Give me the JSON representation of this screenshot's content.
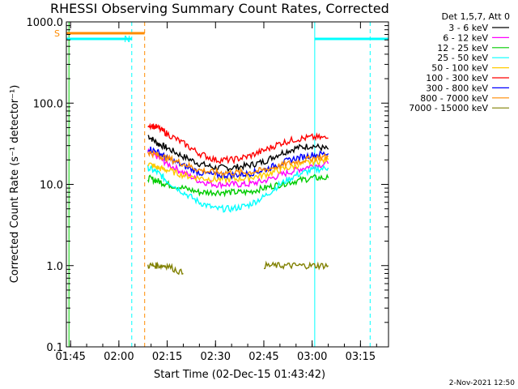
{
  "chart_data": {
    "type": "line",
    "title": "RHESSI Observing Summary Count Rates, Corrected",
    "xlabel": "Start Time (02-Dec-15 01:43:42)",
    "ylabel": "Corrected Count Rate (s⁻¹ detector⁻¹)",
    "yscale": "log",
    "ylim": [
      0.1,
      1000.0
    ],
    "xlim": [
      "01:43:42",
      "03:23:42"
    ],
    "x_ticks": [
      "01:45",
      "02:00",
      "02:15",
      "02:30",
      "02:45",
      "03:00",
      "03:15"
    ],
    "y_ticks": [
      "0.1",
      "1.0",
      "10.0",
      "100.0",
      "1000.0"
    ],
    "legend_title": "Det 1,5,7, Att 0",
    "legend_position": "right-outside",
    "series": [
      {
        "name": "3 - 6 keV",
        "color": "#000000",
        "x": [
          "02:09",
          "02:12",
          "02:15",
          "02:20",
          "02:25",
          "02:30",
          "02:35",
          "02:40",
          "02:45",
          "02:50",
          "02:55",
          "03:00",
          "03:05"
        ],
        "y": [
          40,
          32,
          28,
          22,
          18,
          16,
          16,
          17,
          19,
          24,
          28,
          30,
          27
        ]
      },
      {
        "name": "6 - 12 keV",
        "color": "#ff00ff",
        "x": [
          "02:09",
          "02:12",
          "02:15",
          "02:20",
          "02:25",
          "02:30",
          "02:35",
          "02:40",
          "02:45",
          "02:50",
          "02:55",
          "03:00",
          "03:05"
        ],
        "y": [
          25,
          22,
          18,
          14,
          11,
          10,
          10,
          10,
          11,
          13,
          15,
          17,
          18
        ]
      },
      {
        "name": "12 - 25 keV",
        "color": "#00cc00",
        "x": [
          "02:09",
          "02:12",
          "02:15",
          "02:20",
          "02:25",
          "02:30",
          "02:35",
          "02:40",
          "02:45",
          "02:50",
          "02:55",
          "03:00",
          "03:05"
        ],
        "y": [
          12,
          11,
          10,
          9,
          8,
          8,
          8,
          8,
          9,
          10,
          11,
          12,
          12
        ]
      },
      {
        "name": "25 - 50 keV",
        "color": "#00ffff",
        "x": [
          "02:09",
          "02:12",
          "02:15",
          "02:20",
          "02:25",
          "02:30",
          "02:35",
          "02:40",
          "02:45",
          "02:50",
          "02:55",
          "03:00",
          "03:05"
        ],
        "y": [
          16,
          14,
          11,
          8,
          6,
          5,
          5,
          5.5,
          7,
          10,
          13,
          15,
          16
        ]
      },
      {
        "name": "50 - 100 keV",
        "color": "#ffcc00",
        "x": [
          "02:09",
          "02:12",
          "02:15",
          "02:20",
          "02:25",
          "02:30",
          "02:35",
          "02:40",
          "02:45",
          "02:50",
          "02:55",
          "03:00",
          "03:05"
        ],
        "y": [
          18,
          16,
          15,
          13,
          12,
          11.5,
          11.5,
          12,
          13,
          15,
          17,
          19,
          20
        ]
      },
      {
        "name": "100 - 300 keV",
        "color": "#ff0000",
        "x": [
          "02:09",
          "02:12",
          "02:15",
          "02:20",
          "02:25",
          "02:30",
          "02:35",
          "02:40",
          "02:45",
          "02:50",
          "02:55",
          "03:00",
          "03:05"
        ],
        "y": [
          55,
          50,
          42,
          32,
          24,
          20,
          20,
          22,
          26,
          32,
          36,
          38,
          37
        ]
      },
      {
        "name": "300 - 800 keV",
        "color": "#0000ff",
        "x": [
          "02:09",
          "02:12",
          "02:15",
          "02:20",
          "02:25",
          "02:30",
          "02:35",
          "02:40",
          "02:45",
          "02:50",
          "02:55",
          "03:00",
          "03:05"
        ],
        "y": [
          28,
          25,
          21,
          17,
          14,
          13,
          13,
          13.5,
          15,
          18,
          21,
          23,
          24
        ]
      },
      {
        "name": "800 - 7000 keV",
        "color": "#ff8c00",
        "x": [
          "02:09",
          "02:12",
          "02:15",
          "02:20",
          "02:25",
          "02:30",
          "02:35",
          "02:40",
          "02:45",
          "02:50",
          "02:55",
          "03:00",
          "03:05"
        ],
        "y": [
          25,
          23,
          21,
          18,
          15,
          14,
          14,
          14,
          15,
          17,
          19,
          21,
          22
        ]
      },
      {
        "name": "7000 - 15000 keV",
        "color": "#808000",
        "x": [
          "02:09",
          "02:12",
          "02:15",
          "02:20",
          "02:25",
          "02:30",
          "02:35",
          "02:40",
          "02:45",
          "02:50",
          "02:55",
          "03:00",
          "03:05"
        ],
        "y": [
          1.0,
          1.0,
          1.0,
          0.8,
          null,
          null,
          null,
          null,
          1.0,
          1.0,
          1.0,
          1.0,
          1.0
        ]
      }
    ],
    "flag_bars": [
      {
        "label": "S",
        "color": "#ff8c00",
        "segments": [
          [
            "01:43:42",
            "02:08:00"
          ]
        ]
      },
      {
        "label": "N",
        "color": "#00ffff",
        "segments": [
          [
            "01:43:42",
            "02:04:00"
          ],
          [
            "03:00:48",
            "03:23:42"
          ]
        ]
      }
    ],
    "vertical_lines": [
      {
        "time": "02:04:00",
        "color": "#00ffff",
        "style": "dashed"
      },
      {
        "time": "02:08:00",
        "color": "#ff8c00",
        "style": "dashed"
      },
      {
        "time": "03:00:48",
        "color": "#00ffff",
        "style": "solid"
      },
      {
        "time": "03:18:00",
        "color": "#00ffff",
        "style": "dashed"
      },
      {
        "time": "01:44:30",
        "color": "#00cc00",
        "style": "solid"
      }
    ]
  },
  "footer": {
    "date": "2-Nov-2021 12:50"
  }
}
